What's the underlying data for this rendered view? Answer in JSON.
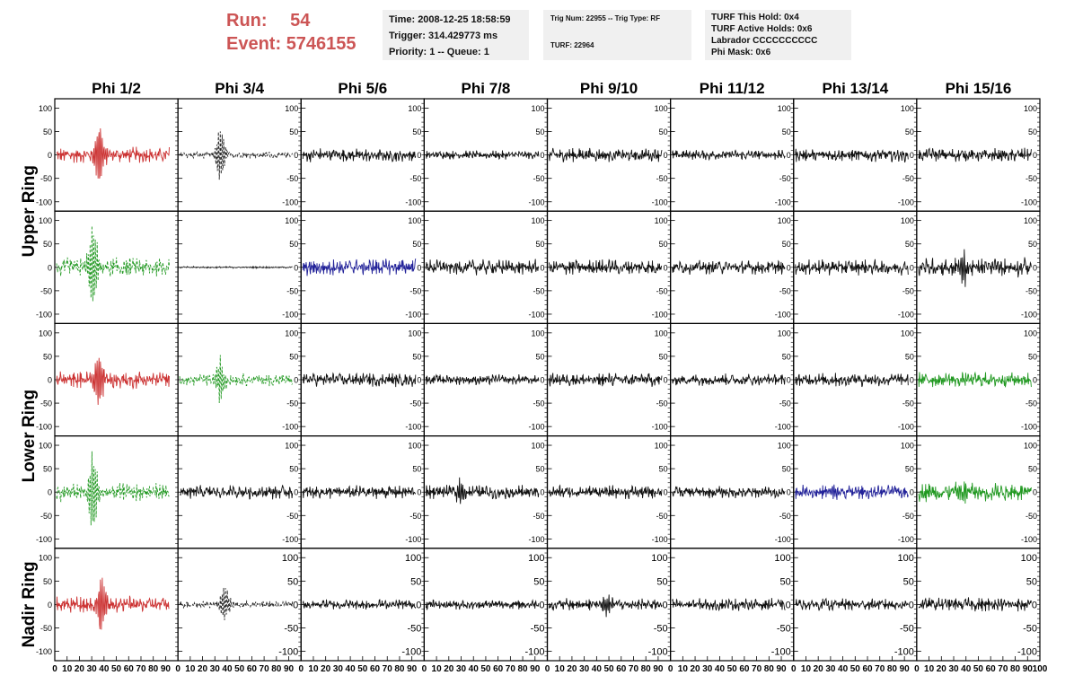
{
  "header": {
    "run_label": "Run:",
    "run_value": "54",
    "event_label": "Event:",
    "event_value": "5746155",
    "info1": [
      "Time: 2008-12-25 18:58:59",
      "Trigger: 314.429773 ms",
      "Priority: 1 -- Queue: 1"
    ],
    "info2": [
      "Trig Num: 22955 -- Trig Type: RF",
      "",
      "TURF: 22964"
    ],
    "info3": [
      "TURF This Hold: 0x4",
      "TURF Active Holds: 0x6",
      "Labrador CCCCCCCCCC",
      "Phi Mask: 0x6"
    ]
  },
  "chart_data": {
    "type": "line",
    "columns": [
      "Phi 1/2",
      "Phi 3/4",
      "Phi 5/6",
      "Phi 7/8",
      "Phi 9/10",
      "Phi 11/12",
      "Phi 13/14",
      "Phi 15/16"
    ],
    "rows": [
      {
        "label": "Upper Ring",
        "panels": 2
      },
      {
        "label": "Lower Ring",
        "panels": 2
      },
      {
        "label": "Nadir Ring",
        "panels": 1
      }
    ],
    "y_ticks": [
      "100",
      "50",
      "0",
      "-50",
      "-100"
    ],
    "ylim": [
      -120,
      120
    ],
    "x_ticks": [
      "0",
      "10",
      "20",
      "30",
      "40",
      "50",
      "60",
      "70",
      "80",
      "90",
      "100"
    ],
    "xlim": [
      0,
      100
    ],
    "colors": {
      "red": "#cc3333",
      "green": "#229922",
      "blue": "#222299",
      "black": "#111111",
      "dark": "#222222"
    },
    "panels": [
      [
        {
          "color": "red",
          "style": "solid",
          "amp": 18,
          "pulse": 70,
          "pulse_center": 38
        },
        {
          "color": "dark",
          "style": "dashed",
          "amp": 8,
          "pulse": 65,
          "pulse_center": 36
        },
        {
          "color": "black",
          "style": "solid",
          "amp": 16,
          "pulse": 0,
          "pulse_center": 50
        },
        {
          "color": "black",
          "style": "solid",
          "amp": 10,
          "pulse": 0,
          "pulse_center": 50
        },
        {
          "color": "black",
          "style": "solid",
          "amp": 16,
          "pulse": 0,
          "pulse_center": 50
        },
        {
          "color": "black",
          "style": "solid",
          "amp": 12,
          "pulse": 0,
          "pulse_center": 50
        },
        {
          "color": "black",
          "style": "solid",
          "amp": 16,
          "pulse": 0,
          "pulse_center": 50
        },
        {
          "color": "black",
          "style": "solid",
          "amp": 16,
          "pulse": 0,
          "pulse_center": 50
        }
      ],
      [
        {
          "color": "green",
          "style": "dashed",
          "amp": 22,
          "pulse": 95,
          "pulse_center": 32
        },
        {
          "color": "dark",
          "style": "solid",
          "amp": 2,
          "pulse": 0,
          "pulse_center": 50
        },
        {
          "color": "blue",
          "style": "solid",
          "amp": 20,
          "pulse": 0,
          "pulse_center": 50
        },
        {
          "color": "black",
          "style": "solid",
          "amp": 18,
          "pulse": 0,
          "pulse_center": 50
        },
        {
          "color": "black",
          "style": "solid",
          "amp": 18,
          "pulse": 0,
          "pulse_center": 50
        },
        {
          "color": "black",
          "style": "solid",
          "amp": 16,
          "pulse": 0,
          "pulse_center": 50
        },
        {
          "color": "black",
          "style": "solid",
          "amp": 18,
          "pulse": 0,
          "pulse_center": 50
        },
        {
          "color": "black",
          "style": "solid",
          "amp": 22,
          "pulse": 35,
          "pulse_center": 40
        }
      ],
      [
        {
          "color": "red",
          "style": "solid",
          "amp": 20,
          "pulse": 65,
          "pulse_center": 37
        },
        {
          "color": "green",
          "style": "dashed",
          "amp": 14,
          "pulse": 45,
          "pulse_center": 36
        },
        {
          "color": "black",
          "style": "solid",
          "amp": 16,
          "pulse": 0,
          "pulse_center": 50
        },
        {
          "color": "black",
          "style": "solid",
          "amp": 12,
          "pulse": 0,
          "pulse_center": 50
        },
        {
          "color": "black",
          "style": "solid",
          "amp": 16,
          "pulse": 0,
          "pulse_center": 50
        },
        {
          "color": "black",
          "style": "solid",
          "amp": 14,
          "pulse": 0,
          "pulse_center": 50
        },
        {
          "color": "black",
          "style": "solid",
          "amp": 16,
          "pulse": 0,
          "pulse_center": 50
        },
        {
          "color": "green",
          "style": "solid",
          "amp": 18,
          "pulse": 0,
          "pulse_center": 50
        }
      ],
      [
        {
          "color": "green",
          "style": "dashed",
          "amp": 20,
          "pulse": 95,
          "pulse_center": 32
        },
        {
          "color": "black",
          "style": "solid",
          "amp": 16,
          "pulse": 0,
          "pulse_center": 50
        },
        {
          "color": "black",
          "style": "solid",
          "amp": 16,
          "pulse": 0,
          "pulse_center": 50
        },
        {
          "color": "black",
          "style": "solid",
          "amp": 16,
          "pulse": 25,
          "pulse_center": 30
        },
        {
          "color": "black",
          "style": "solid",
          "amp": 16,
          "pulse": 0,
          "pulse_center": 50
        },
        {
          "color": "black",
          "style": "solid",
          "amp": 14,
          "pulse": 0,
          "pulse_center": 50
        },
        {
          "color": "blue",
          "style": "solid",
          "amp": 16,
          "pulse": 20,
          "pulse_center": 35
        },
        {
          "color": "green",
          "style": "solid",
          "amp": 22,
          "pulse": 30,
          "pulse_center": 40
        }
      ],
      [
        {
          "color": "red",
          "style": "solid",
          "amp": 20,
          "pulse": 65,
          "pulse_center": 40
        },
        {
          "color": "dark",
          "style": "dashed",
          "amp": 8,
          "pulse": 40,
          "pulse_center": 40
        },
        {
          "color": "black",
          "style": "solid",
          "amp": 12,
          "pulse": 0,
          "pulse_center": 50
        },
        {
          "color": "black",
          "style": "solid",
          "amp": 12,
          "pulse": 0,
          "pulse_center": 50
        },
        {
          "color": "black",
          "style": "solid",
          "amp": 14,
          "pulse": 20,
          "pulse_center": 50
        },
        {
          "color": "black",
          "style": "solid",
          "amp": 14,
          "pulse": 0,
          "pulse_center": 50
        },
        {
          "color": "black",
          "style": "solid",
          "amp": 14,
          "pulse": 0,
          "pulse_center": 50
        },
        {
          "color": "black",
          "style": "solid",
          "amp": 16,
          "pulse": 0,
          "pulse_center": 50
        }
      ]
    ]
  }
}
